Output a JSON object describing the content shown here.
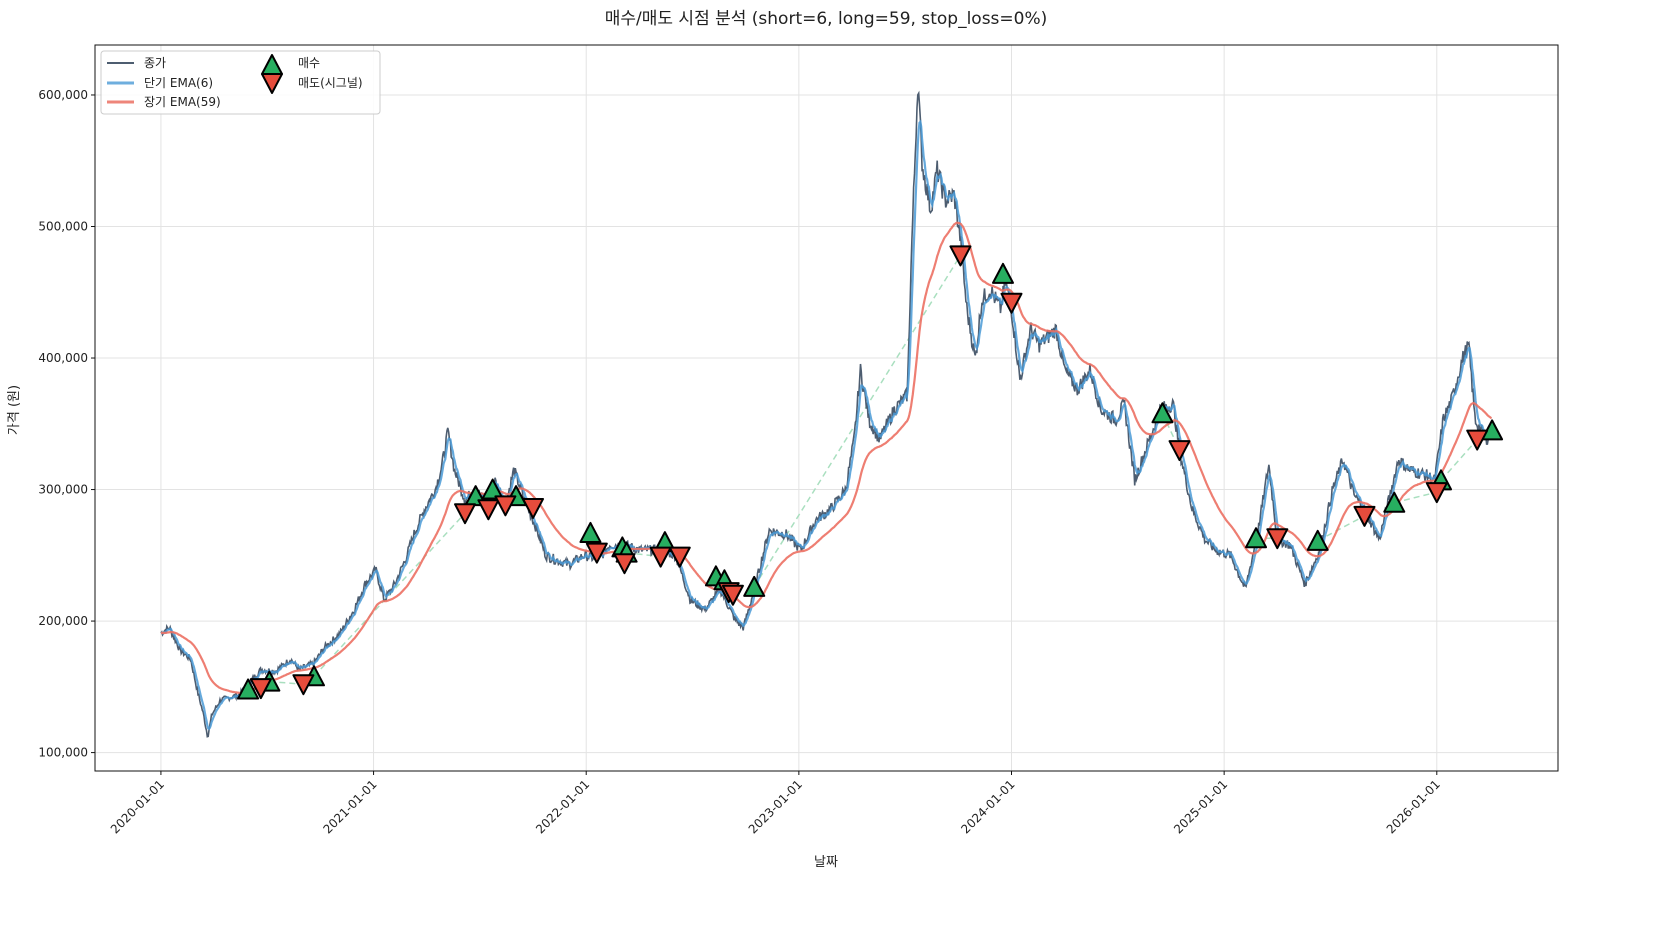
{
  "chart_data": {
    "type": "line",
    "title": "매수/매도 시점 분석 (short=6, long=59, stop_loss=0%)",
    "xlabel": "날짜",
    "ylabel": "가격 (원)",
    "xlim_years": [
      2019.69,
      2026.57
    ],
    "ylim": [
      86000,
      638000
    ],
    "grid": true,
    "legend_position": "top-left",
    "x_ticks": [
      {
        "t": 2020,
        "label": "2020-01-01"
      },
      {
        "t": 2021,
        "label": "2021-01-01"
      },
      {
        "t": 2022,
        "label": "2022-01-01"
      },
      {
        "t": 2023,
        "label": "2023-01-01"
      },
      {
        "t": 2024,
        "label": "2024-01-01"
      },
      {
        "t": 2025,
        "label": "2025-01-01"
      },
      {
        "t": 2026,
        "label": "2026-01-01"
      }
    ],
    "y_ticks": [
      {
        "v": 100000,
        "label": "100,000"
      },
      {
        "v": 200000,
        "label": "200,000"
      },
      {
        "v": 300000,
        "label": "300,000"
      },
      {
        "v": 400000,
        "label": "400,000"
      },
      {
        "v": 500000,
        "label": "500,000"
      },
      {
        "v": 600000,
        "label": "600,000"
      }
    ],
    "legend": {
      "close": "종가",
      "short_ema": "단기 EMA(6)",
      "long_ema": "장기 EMA(59)",
      "buy": "매수",
      "sell": "매도(시그널)"
    },
    "ema_spans": {
      "short": 6,
      "long": 59
    },
    "colors": {
      "close": "#4d5d70",
      "short_ema": "#4a9ad6",
      "long_ema": "#ec7063",
      "buy": "#27ae60",
      "sell": "#e74c3c",
      "trade": "#a9dfbf"
    },
    "close_series": [
      [
        2020.0,
        191000
      ],
      [
        2020.04,
        195000
      ],
      [
        2020.09,
        178000
      ],
      [
        2020.14,
        171000
      ],
      [
        2020.17,
        148000
      ],
      [
        2020.2,
        129000
      ],
      [
        2020.22,
        112000
      ],
      [
        2020.24,
        129000
      ],
      [
        2020.28,
        140000
      ],
      [
        2020.37,
        144000
      ],
      [
        2020.42,
        154000
      ],
      [
        2020.47,
        163000
      ],
      [
        2020.54,
        162000
      ],
      [
        2020.61,
        171000
      ],
      [
        2020.65,
        163000
      ],
      [
        2020.72,
        168000
      ],
      [
        2020.77,
        180000
      ],
      [
        2020.84,
        190000
      ],
      [
        2020.91,
        209000
      ],
      [
        2020.96,
        228000
      ],
      [
        2021.01,
        239000
      ],
      [
        2021.05,
        216000
      ],
      [
        2021.1,
        228000
      ],
      [
        2021.15,
        247000
      ],
      [
        2021.19,
        266000
      ],
      [
        2021.24,
        285000
      ],
      [
        2021.29,
        300000
      ],
      [
        2021.32,
        317000
      ],
      [
        2021.35,
        344000
      ],
      [
        2021.38,
        315000
      ],
      [
        2021.43,
        292000
      ],
      [
        2021.48,
        300000
      ],
      [
        2021.52,
        292000
      ],
      [
        2021.57,
        307000
      ],
      [
        2021.62,
        288000
      ],
      [
        2021.66,
        315000
      ],
      [
        2021.71,
        292000
      ],
      [
        2021.76,
        273000
      ],
      [
        2021.81,
        250000
      ],
      [
        2021.85,
        247000
      ],
      [
        2021.92,
        243000
      ],
      [
        2021.99,
        250000
      ],
      [
        2022.06,
        247000
      ],
      [
        2022.11,
        258000
      ],
      [
        2022.18,
        258000
      ],
      [
        2022.25,
        254000
      ],
      [
        2022.35,
        254000
      ],
      [
        2022.42,
        250000
      ],
      [
        2022.49,
        216000
      ],
      [
        2022.56,
        209000
      ],
      [
        2022.63,
        224000
      ],
      [
        2022.7,
        201000
      ],
      [
        2022.74,
        195000
      ],
      [
        2022.79,
        224000
      ],
      [
        2022.86,
        269000
      ],
      [
        2022.94,
        266000
      ],
      [
        2023.01,
        254000
      ],
      [
        2023.08,
        277000
      ],
      [
        2023.15,
        285000
      ],
      [
        2023.22,
        300000
      ],
      [
        2023.26,
        338000
      ],
      [
        2023.29,
        391000
      ],
      [
        2023.33,
        353000
      ],
      [
        2023.38,
        338000
      ],
      [
        2023.45,
        361000
      ],
      [
        2023.51,
        372000
      ],
      [
        2023.53,
        482000
      ],
      [
        2023.56,
        611000
      ],
      [
        2023.58,
        547000
      ],
      [
        2023.62,
        513000
      ],
      [
        2023.65,
        543000
      ],
      [
        2023.69,
        520000
      ],
      [
        2023.73,
        524000
      ],
      [
        2023.76,
        490000
      ],
      [
        2023.79,
        437000
      ],
      [
        2023.83,
        399000
      ],
      [
        2023.86,
        444000
      ],
      [
        2023.9,
        452000
      ],
      [
        2023.95,
        437000
      ],
      [
        2023.97,
        459000
      ],
      [
        2024.0,
        437000
      ],
      [
        2024.04,
        383000
      ],
      [
        2024.09,
        422000
      ],
      [
        2024.13,
        410000
      ],
      [
        2024.21,
        422000
      ],
      [
        2024.25,
        391000
      ],
      [
        2024.31,
        376000
      ],
      [
        2024.37,
        391000
      ],
      [
        2024.42,
        361000
      ],
      [
        2024.49,
        353000
      ],
      [
        2024.53,
        365000
      ],
      [
        2024.58,
        307000
      ],
      [
        2024.63,
        330000
      ],
      [
        2024.7,
        361000
      ],
      [
        2024.76,
        365000
      ],
      [
        2024.79,
        330000
      ],
      [
        2024.85,
        285000
      ],
      [
        2024.91,
        262000
      ],
      [
        2024.96,
        254000
      ],
      [
        2025.03,
        250000
      ],
      [
        2025.1,
        224000
      ],
      [
        2025.16,
        269000
      ],
      [
        2025.21,
        319000
      ],
      [
        2025.25,
        262000
      ],
      [
        2025.31,
        258000
      ],
      [
        2025.38,
        228000
      ],
      [
        2025.45,
        254000
      ],
      [
        2025.51,
        300000
      ],
      [
        2025.56,
        323000
      ],
      [
        2025.61,
        296000
      ],
      [
        2025.66,
        285000
      ],
      [
        2025.73,
        262000
      ],
      [
        2025.82,
        323000
      ],
      [
        2025.87,
        315000
      ],
      [
        2025.95,
        311000
      ],
      [
        2025.99,
        307000
      ],
      [
        2026.03,
        353000
      ],
      [
        2026.07,
        368000
      ],
      [
        2026.12,
        399000
      ],
      [
        2026.15,
        410000
      ],
      [
        2026.18,
        353000
      ],
      [
        2026.23,
        338000
      ],
      [
        2026.26,
        344000
      ]
    ],
    "buy_signals": [
      [
        2020.41,
        148000
      ],
      [
        2020.51,
        154000
      ],
      [
        2020.72,
        158000
      ],
      [
        2021.48,
        295000
      ],
      [
        2021.56,
        300000
      ],
      [
        2021.67,
        295000
      ],
      [
        2022.02,
        267000
      ],
      [
        2022.17,
        256000
      ],
      [
        2022.19,
        252000
      ],
      [
        2022.37,
        260000
      ],
      [
        2022.61,
        234000
      ],
      [
        2022.65,
        231000
      ],
      [
        2022.79,
        226000
      ],
      [
        2023.96,
        464000
      ],
      [
        2024.71,
        358000
      ],
      [
        2025.15,
        263000
      ],
      [
        2025.44,
        261000
      ],
      [
        2025.8,
        290000
      ],
      [
        2026.02,
        307000
      ],
      [
        2026.26,
        345000
      ]
    ],
    "sell_signals": [
      [
        2020.47,
        149000
      ],
      [
        2020.67,
        152000
      ],
      [
        2021.43,
        282000
      ],
      [
        2021.54,
        285000
      ],
      [
        2021.62,
        288000
      ],
      [
        2021.75,
        286000
      ],
      [
        2022.05,
        252000
      ],
      [
        2022.18,
        244000
      ],
      [
        2022.35,
        249000
      ],
      [
        2022.44,
        249000
      ],
      [
        2022.67,
        222000
      ],
      [
        2022.69,
        220000
      ],
      [
        2023.76,
        478000
      ],
      [
        2024.0,
        442000
      ],
      [
        2024.79,
        330000
      ],
      [
        2025.25,
        263000
      ],
      [
        2025.66,
        280000
      ],
      [
        2026.0,
        298000
      ],
      [
        2026.19,
        338000
      ]
    ]
  }
}
